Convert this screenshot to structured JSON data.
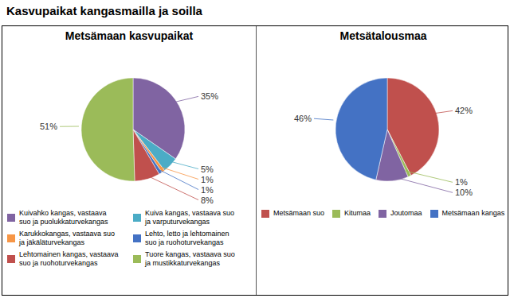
{
  "title": "Kasvupaikat kangasmailla ja soilla",
  "chart_data": [
    {
      "type": "pie",
      "title": "Metsämaan kasvupaikat",
      "categories": [
        "Kuivahko kangas, vastaava\nsuo ja puolukkaturvekangas",
        "Kuiva kangas, vastaava suo\nja varputurvekangas",
        "Karukkokangas, vastaava suo\nja jäkäläturvekangas",
        "Lehto, letto ja lehtomainen\nsuo ja ruohoturvekangas",
        "Lehtomainen kangas, vastaava\nsuo ja ruohoturvekangas",
        "Tuore kangas, vastaava suo\nja mustikkaturvekangas"
      ],
      "values": [
        35,
        5,
        1,
        1,
        8,
        51
      ],
      "value_labels": [
        "35%",
        "5%",
        "1%",
        "1%",
        "8%",
        "51%"
      ],
      "colors": [
        "#8064A2",
        "#4BACC6",
        "#F79646",
        "#4472C4",
        "#C0504D",
        "#9BBB59"
      ],
      "data_labels": true,
      "legend": "bottom"
    },
    {
      "type": "pie",
      "title": "Metsätalousmaa",
      "categories": [
        "Metsämaan suo",
        "Kitumaa",
        "Joutomaa",
        "Metsämaan kangas"
      ],
      "values": [
        42,
        1,
        10,
        46
      ],
      "value_labels": [
        "42%",
        "1%",
        "10%",
        "46%"
      ],
      "colors": [
        "#C0504D",
        "#9BBB59",
        "#8064A2",
        "#4472C4"
      ],
      "data_labels": true,
      "legend": "bottom"
    }
  ]
}
